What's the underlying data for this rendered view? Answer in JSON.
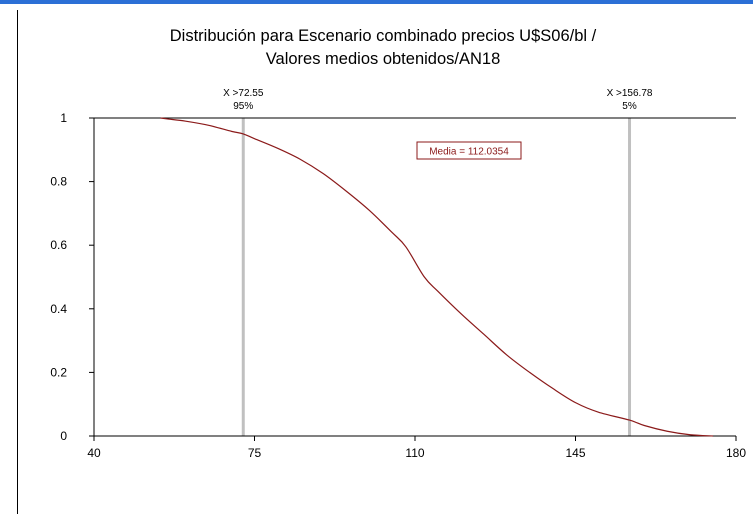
{
  "colors": {
    "top_bar": "#2b6fd6",
    "curve": "#8b1a1a",
    "marker_line": "#c0c0c0",
    "axis": "#000000"
  },
  "chart_data": {
    "type": "line",
    "title_lines": [
      "Distribución para Escenario combinado precios U$S06/bl /",
      "Valores medios obtenidos/AN18"
    ],
    "xlim": [
      40,
      180
    ],
    "ylim": [
      0,
      1
    ],
    "x_ticks": [
      "40",
      "75",
      "110",
      "145",
      "180"
    ],
    "y_ticks": [
      "0",
      "0.2",
      "0.4",
      "0.6",
      "0.8",
      "1"
    ],
    "grid": false,
    "series": [
      {
        "x": [
          54.5,
          56,
          60,
          65,
          70,
          72.55,
          75,
          80,
          85,
          90,
          95,
          100,
          105,
          108,
          112.04,
          115,
          120,
          125,
          130,
          135,
          140,
          145,
          150,
          156.78,
          160,
          165,
          170,
          175
        ],
        "values": [
          1.0,
          0.997,
          0.99,
          0.977,
          0.958,
          0.95,
          0.935,
          0.905,
          0.87,
          0.825,
          0.77,
          0.71,
          0.64,
          0.595,
          0.5,
          0.455,
          0.385,
          0.32,
          0.255,
          0.2,
          0.15,
          0.105,
          0.075,
          0.05,
          0.033,
          0.015,
          0.004,
          0.0
        ]
      }
    ],
    "markers": [
      {
        "x": 72.55,
        "label": "X >72.55",
        "pct": "95%"
      },
      {
        "x": 156.78,
        "label": "X >156.78",
        "pct": "5%"
      }
    ],
    "annotation": {
      "text": "Media = 112.0354"
    }
  }
}
